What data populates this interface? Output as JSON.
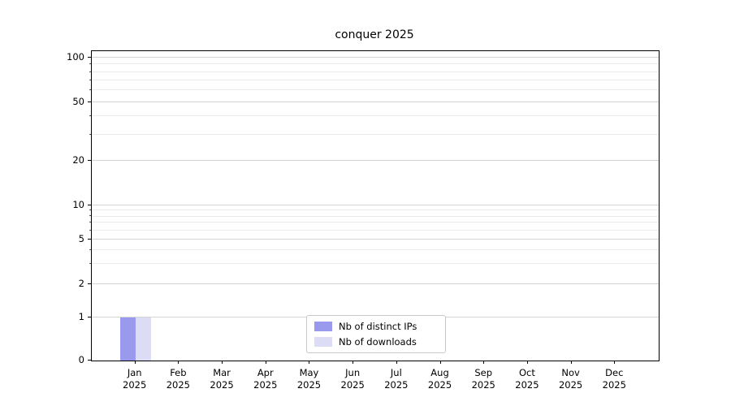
{
  "title": "conquer 2025",
  "chart_data": {
    "type": "bar",
    "title": "conquer 2025",
    "xlabel": "",
    "ylabel": "",
    "scale": "symlog",
    "grid": true,
    "legend_position": "lower center",
    "ylim": [
      0,
      100
    ],
    "yticks": [
      0,
      1,
      2,
      5,
      10,
      20,
      50,
      100
    ],
    "minor_yticks": [
      3,
      4,
      6,
      7,
      8,
      9,
      30,
      40,
      60,
      70,
      80,
      90
    ],
    "y_anchor_fracs": {
      "1": 0.139,
      "10": 0.501,
      "100": 0.979
    },
    "categories": [
      {
        "month": "Jan",
        "year": "2025"
      },
      {
        "month": "Feb",
        "year": "2025"
      },
      {
        "month": "Mar",
        "year": "2025"
      },
      {
        "month": "Apr",
        "year": "2025"
      },
      {
        "month": "May",
        "year": "2025"
      },
      {
        "month": "Jun",
        "year": "2025"
      },
      {
        "month": "Jul",
        "year": "2025"
      },
      {
        "month": "Aug",
        "year": "2025"
      },
      {
        "month": "Sep",
        "year": "2025"
      },
      {
        "month": "Oct",
        "year": "2025"
      },
      {
        "month": "Nov",
        "year": "2025"
      },
      {
        "month": "Dec",
        "year": "2025"
      }
    ],
    "series": [
      {
        "name": "Nb of distinct IPs",
        "color": "#9999ee",
        "values": [
          1,
          0,
          0,
          0,
          0,
          0,
          0,
          0,
          0,
          0,
          0,
          0
        ]
      },
      {
        "name": "Nb of downloads",
        "color": "#dcdcf7",
        "values": [
          1,
          0,
          0,
          0,
          0,
          0,
          0,
          0,
          0,
          0,
          0,
          0
        ]
      }
    ]
  }
}
